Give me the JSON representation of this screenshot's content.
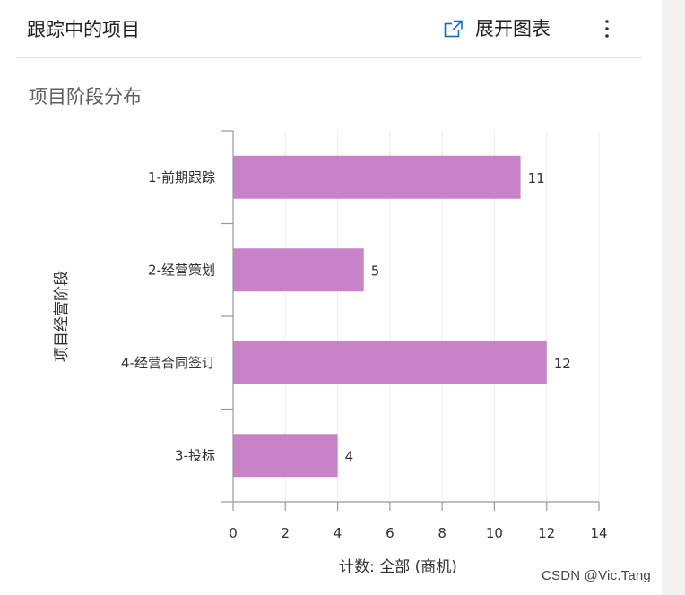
{
  "header": {
    "title": "跟踪中的项目",
    "expand_label": "展开图表",
    "expand_icon": "open-in-new-icon",
    "more_icon": "more-vertical-icon"
  },
  "chart_title": "项目阶段分布",
  "chart_data": {
    "type": "bar",
    "orientation": "horizontal",
    "categories": [
      "1-前期跟踪",
      "2-经营策划",
      "4-经营合同签订",
      "3-投标"
    ],
    "values": [
      11,
      5,
      12,
      4
    ],
    "data_labels": [
      "11",
      "5",
      "12",
      "4"
    ],
    "xlabel": "计数: 全部 (商机)",
    "ylabel": "项目经营阶段",
    "xlim": [
      0,
      14
    ],
    "xticks": [
      "0",
      "2",
      "4",
      "6",
      "8",
      "10",
      "12",
      "14"
    ],
    "bar_color": "#c882c8",
    "grid": true,
    "legend": "none"
  },
  "watermark": "CSDN @Vic.Tang"
}
